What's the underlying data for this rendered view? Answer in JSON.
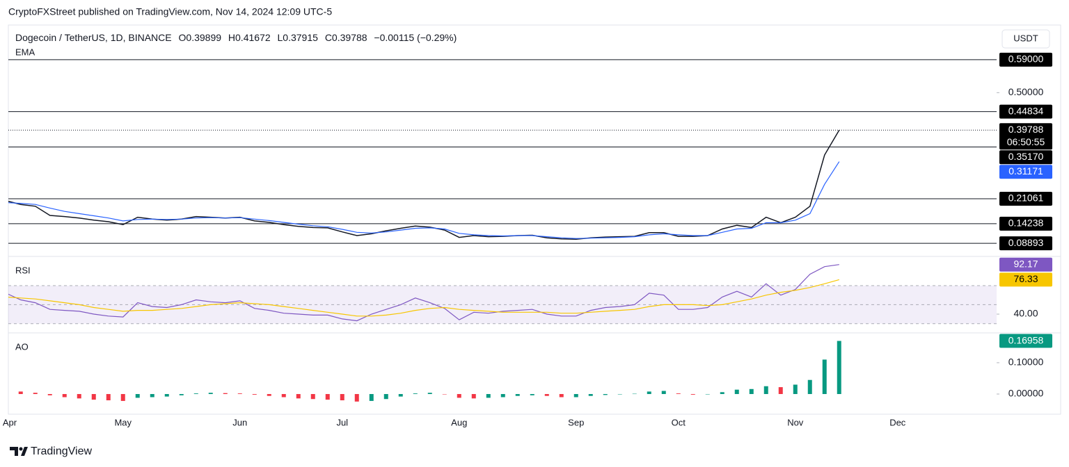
{
  "header": {
    "publisher": "CryptoFXStreet published on TradingView.com, Nov 14, 2024 12:09 UTC-5",
    "symbol": "Dogecoin / TetherUS, 1D, BINANCE",
    "open": "O0.39899",
    "high": "H0.41672",
    "low": "L0.37915",
    "close": "C0.39788",
    "change": "−0.00115 (−0.29%)",
    "currency": "USDT",
    "brand": "TradingView"
  },
  "chart_data": [
    {
      "type": "line",
      "title": "EMA",
      "countdown": "06:50:55",
      "categories": [
        "Apr",
        null,
        null,
        null,
        null,
        null,
        null,
        null,
        "May",
        null,
        null,
        null,
        null,
        null,
        null,
        null,
        "Jun",
        null,
        null,
        null,
        null,
        null,
        null,
        "Jul",
        null,
        null,
        null,
        null,
        null,
        null,
        null,
        "Aug",
        null,
        null,
        null,
        null,
        null,
        null,
        null,
        "Sep",
        null,
        null,
        null,
        null,
        null,
        null,
        "Oct",
        null,
        null,
        null,
        null,
        null,
        null,
        null,
        "Nov",
        null,
        null,
        null,
        null,
        null,
        null,
        "Dec",
        null,
        null,
        null,
        null,
        null,
        null
      ],
      "series": [
        {
          "color": "#131722",
          "values": [
            0.205,
            0.195,
            0.19,
            0.165,
            0.162,
            0.158,
            0.152,
            0.148,
            0.14,
            0.16,
            0.155,
            0.152,
            0.155,
            0.162,
            0.16,
            0.158,
            0.16,
            0.15,
            0.146,
            0.14,
            0.135,
            0.132,
            0.131,
            0.12,
            0.11,
            0.115,
            0.123,
            0.13,
            0.136,
            0.133,
            0.125,
            0.105,
            0.11,
            0.107,
            0.108,
            0.11,
            0.111,
            0.104,
            0.101,
            0.1,
            0.104,
            0.106,
            0.107,
            0.108,
            0.118,
            0.118,
            0.108,
            0.108,
            0.11,
            0.128,
            0.138,
            0.132,
            0.16,
            0.145,
            0.16,
            0.19,
            0.33,
            0.39788,
            null,
            null,
            null,
            null,
            null,
            null,
            null,
            null,
            null,
            null
          ]
        },
        {
          "color": "#2962ff",
          "values": [
            0.2,
            0.198,
            0.195,
            0.185,
            0.176,
            0.17,
            0.164,
            0.158,
            0.15,
            0.154,
            0.155,
            0.154,
            0.155,
            0.158,
            0.159,
            0.158,
            0.159,
            0.155,
            0.151,
            0.146,
            0.141,
            0.137,
            0.134,
            0.127,
            0.119,
            0.117,
            0.12,
            0.125,
            0.13,
            0.131,
            0.128,
            0.116,
            0.112,
            0.11,
            0.109,
            0.11,
            0.11,
            0.107,
            0.104,
            0.102,
            0.103,
            0.104,
            0.105,
            0.107,
            0.112,
            0.115,
            0.112,
            0.11,
            0.11,
            0.119,
            0.128,
            0.13,
            0.145,
            0.145,
            0.152,
            0.17,
            0.25,
            0.31171,
            null,
            null,
            null,
            null,
            null,
            null,
            null,
            null,
            null,
            null
          ]
        }
      ],
      "ylim": [
        0.055,
        0.677
      ],
      "yticks": [
        {
          "value": 0.5,
          "label": "0.50000"
        }
      ],
      "levels": [
        {
          "value": 0.59,
          "label": "0.59000"
        },
        0.44834,
        {
          "value": 0.3517,
          "label": "0.35170"
        },
        0.21061,
        0.14238,
        0.08893
      ]
    },
    {
      "type": "line",
      "title": "RSI",
      "series": [
        {
          "color": "#7e57c2",
          "values": [
            62,
            55,
            52,
            45,
            44,
            43,
            40,
            38,
            37,
            52,
            48,
            47,
            50,
            55,
            53,
            52,
            54,
            46,
            44,
            41,
            40,
            39,
            39,
            35,
            33,
            40,
            45,
            50,
            57,
            52,
            46,
            34,
            42,
            41,
            43,
            44,
            45,
            40,
            38,
            38,
            44,
            47,
            48,
            50,
            62,
            60,
            45,
            45,
            47,
            58,
            64,
            58,
            72,
            60,
            66,
            82,
            90,
            92.17,
            null,
            null,
            null,
            null,
            null,
            null,
            null,
            null,
            null,
            null
          ]
        },
        {
          "color": "#f7c600",
          "values": [
            58,
            57,
            56,
            54,
            52,
            50,
            47,
            45,
            43,
            44,
            44,
            45,
            46,
            48,
            50,
            51,
            52,
            51,
            50,
            48,
            46,
            44,
            42,
            40,
            38,
            38,
            39,
            41,
            44,
            46,
            47,
            45,
            44,
            43,
            42,
            42,
            42,
            42,
            41,
            41,
            42,
            43,
            44,
            45,
            48,
            50,
            50,
            50,
            49,
            50,
            53,
            56,
            60,
            63,
            65,
            68,
            72,
            76.33,
            null,
            null,
            null,
            null,
            null,
            null,
            null,
            null,
            null,
            null
          ]
        }
      ],
      "ylim": [
        21,
        100
      ],
      "yticks": [
        {
          "value": 40,
          "label": "40.00"
        }
      ],
      "levels": [
        30,
        50,
        70
      ]
    },
    {
      "type": "bar",
      "title": "AO",
      "up_color": "#089981",
      "down_color": "#f23645",
      "values": [
        0.012,
        0.008,
        0.004,
        -0.004,
        -0.01,
        -0.014,
        -0.018,
        -0.02,
        -0.022,
        -0.012,
        -0.01,
        -0.008,
        -0.004,
        0.002,
        0.004,
        0.003,
        0.002,
        -0.002,
        -0.006,
        -0.01,
        -0.014,
        -0.016,
        -0.018,
        -0.02,
        -0.024,
        -0.022,
        -0.016,
        -0.008,
        0.002,
        0.004,
        0.0,
        -0.012,
        -0.014,
        -0.012,
        -0.01,
        -0.006,
        -0.004,
        -0.006,
        -0.01,
        -0.01,
        -0.006,
        -0.003,
        -0.001,
        0.001,
        0.008,
        0.01,
        0.002,
        -0.002,
        -0.001,
        0.006,
        0.014,
        0.016,
        0.025,
        0.022,
        0.03,
        0.045,
        0.11,
        0.16958,
        null,
        null,
        null,
        null,
        null,
        null,
        null,
        null,
        null,
        null
      ],
      "ylim": [
        -0.051,
        0.193
      ],
      "yticks": [
        {
          "value": 0.1,
          "label": "0.10000"
        },
        {
          "value": 0,
          "label": "0.00000"
        }
      ]
    }
  ]
}
